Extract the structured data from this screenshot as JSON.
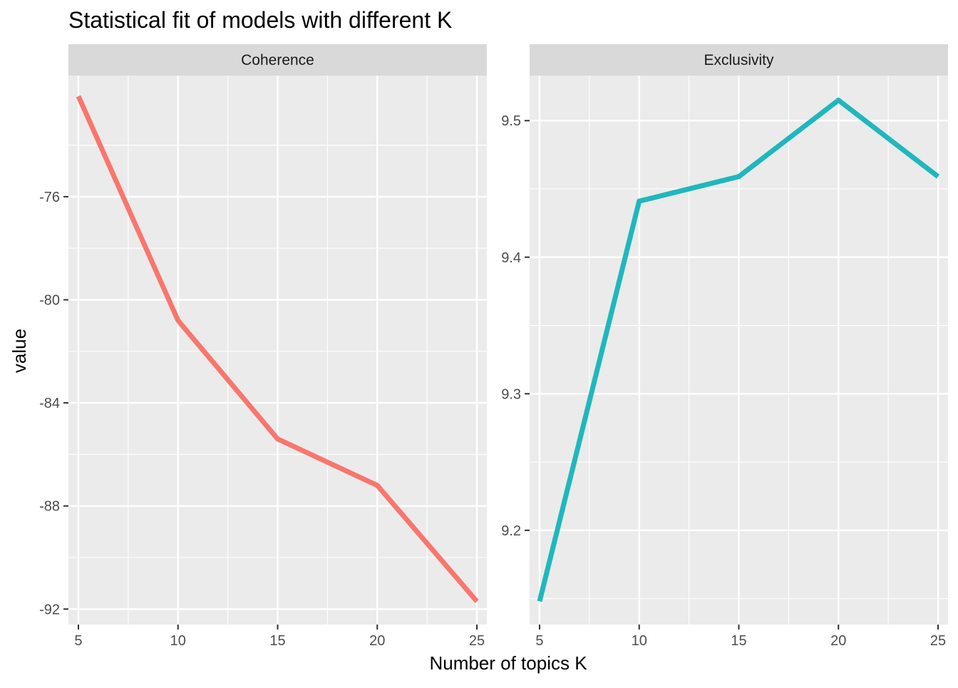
{
  "chart_data": {
    "type": "line",
    "title": "Statistical fit of models with different K",
    "xlabel": "Number of topics K",
    "ylabel": "value",
    "x": [
      5,
      10,
      15,
      20,
      25
    ],
    "x_ticks": [
      5,
      10,
      15,
      20,
      25
    ],
    "xlim": [
      4.5,
      25.5
    ],
    "grid": true,
    "facets": [
      {
        "strip": "Coherence",
        "color": "#f8766d",
        "values": [
          -72.1,
          -80.8,
          -85.4,
          -87.2,
          -91.7
        ],
        "ylim": [
          -92.6,
          -71.3
        ],
        "y_ticks": [
          -92,
          -88,
          -84,
          -80,
          -76
        ],
        "y_tick_labels": [
          "-92",
          "-88",
          "-84",
          "-80",
          "-76"
        ]
      },
      {
        "strip": "Exclusivity",
        "color": "#1fb7bd",
        "values": [
          9.148,
          9.441,
          9.459,
          9.515,
          9.459
        ],
        "ylim": [
          9.131,
          9.533
        ],
        "y_ticks": [
          9.2,
          9.3,
          9.4,
          9.5
        ],
        "y_tick_labels": [
          "9.2",
          "9.3",
          "9.4",
          "9.5"
        ]
      }
    ]
  }
}
